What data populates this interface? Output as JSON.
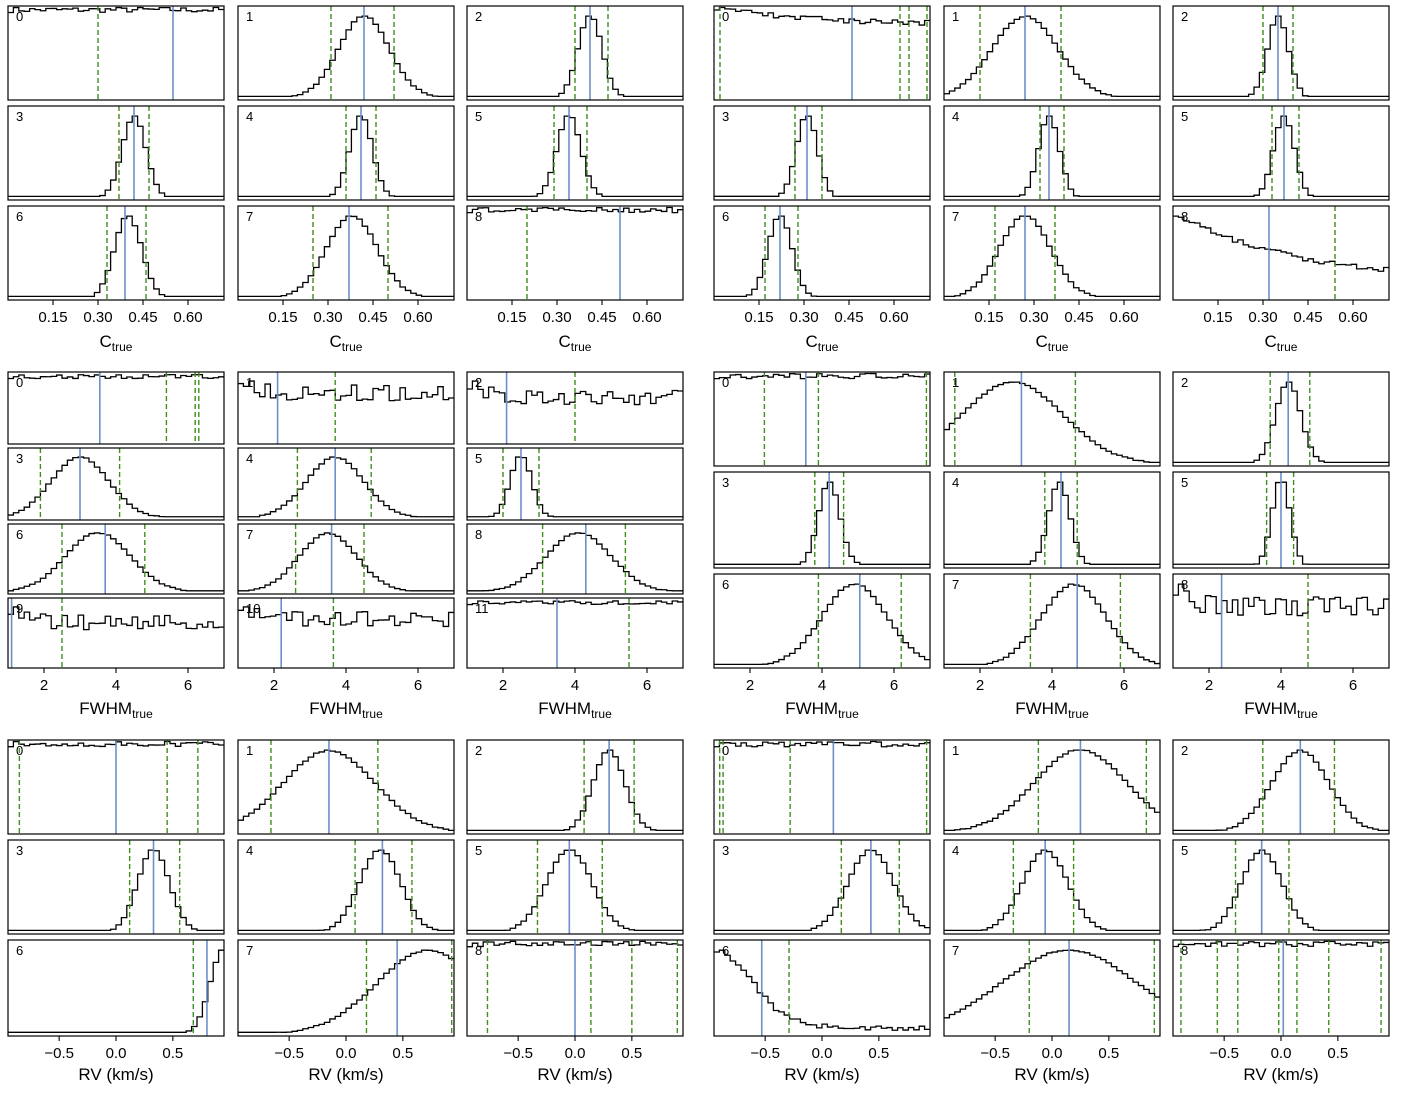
{
  "figure": {
    "colors": {
      "hist": "#000000",
      "median": "#6f8fca",
      "interval": "#3f8f1f"
    }
  },
  "chart_data": [
    {
      "type": "histogram-grid",
      "block": "C-left",
      "xlabel": "C",
      "xlabel_sub": "true",
      "xlim": [
        0.0,
        0.72
      ],
      "xticks": [
        0.15,
        0.3,
        0.45,
        0.6
      ],
      "xtick_labels": [
        "0.15",
        "0.30",
        "0.45",
        "0.60"
      ],
      "panels": [
        {
          "label": "0",
          "kind": "flat",
          "median": 0.55,
          "lines": [
            0.3
          ]
        },
        {
          "label": "1",
          "kind": "gauss",
          "center": 0.42,
          "width": 0.085,
          "median": 0.42,
          "lines": [
            0.31,
            0.52
          ]
        },
        {
          "label": "2",
          "kind": "gauss",
          "center": 0.41,
          "width": 0.04,
          "median": 0.41,
          "lines": [
            0.36,
            0.47
          ]
        },
        {
          "label": "3",
          "kind": "gauss",
          "center": 0.42,
          "width": 0.04,
          "median": 0.42,
          "lines": [
            0.37,
            0.47
          ]
        },
        {
          "label": "4",
          "kind": "gauss",
          "center": 0.41,
          "width": 0.038,
          "median": 0.41,
          "lines": [
            0.36,
            0.46
          ]
        },
        {
          "label": "5",
          "kind": "gauss",
          "center": 0.34,
          "width": 0.04,
          "median": 0.34,
          "lines": [
            0.29,
            0.4
          ]
        },
        {
          "label": "6",
          "kind": "gauss",
          "center": 0.4,
          "width": 0.045,
          "median": 0.39,
          "lines": [
            0.33,
            0.46
          ]
        },
        {
          "label": "7",
          "kind": "gauss",
          "center": 0.38,
          "width": 0.085,
          "median": 0.37,
          "lines": [
            0.25,
            0.5
          ]
        },
        {
          "label": "8",
          "kind": "flat",
          "median": 0.51,
          "lines": [
            0.2
          ]
        }
      ]
    },
    {
      "type": "histogram-grid",
      "block": "C-right",
      "xlabel": "C",
      "xlabel_sub": "true",
      "xlim": [
        0.0,
        0.72
      ],
      "xticks": [
        0.15,
        0.3,
        0.45,
        0.6
      ],
      "xtick_labels": [
        "0.15",
        "0.30",
        "0.45",
        "0.60"
      ],
      "panels": [
        {
          "label": "0",
          "kind": "decay-flat",
          "median": 0.46,
          "lines": [
            0.02,
            0.62,
            0.65,
            0.71
          ]
        },
        {
          "label": "1",
          "kind": "gauss",
          "center": 0.27,
          "width": 0.11,
          "median": 0.27,
          "lines": [
            0.12,
            0.39
          ]
        },
        {
          "label": "2",
          "kind": "gauss",
          "center": 0.35,
          "width": 0.035,
          "median": 0.35,
          "lines": [
            0.3,
            0.4
          ]
        },
        {
          "label": "3",
          "kind": "gauss",
          "center": 0.31,
          "width": 0.035,
          "median": 0.31,
          "lines": [
            0.27,
            0.36
          ]
        },
        {
          "label": "4",
          "kind": "gauss",
          "center": 0.35,
          "width": 0.035,
          "median": 0.35,
          "lines": [
            0.32,
            0.4
          ]
        },
        {
          "label": "5",
          "kind": "gauss",
          "center": 0.37,
          "width": 0.035,
          "median": 0.37,
          "lines": [
            0.33,
            0.42
          ]
        },
        {
          "label": "6",
          "kind": "gauss",
          "center": 0.22,
          "width": 0.04,
          "median": 0.22,
          "lines": [
            0.17,
            0.28
          ]
        },
        {
          "label": "7",
          "kind": "gauss",
          "center": 0.27,
          "width": 0.085,
          "median": 0.27,
          "lines": [
            0.17,
            0.37
          ]
        },
        {
          "label": "8",
          "kind": "decay",
          "median": 0.32,
          "lines": [
            0.54
          ]
        }
      ]
    },
    {
      "type": "histogram-grid",
      "block": "FWHM-left",
      "xlabel": "FWHM",
      "xlabel_sub": "true",
      "xlim": [
        1.0,
        7.0
      ],
      "xticks": [
        2,
        4,
        6
      ],
      "xtick_labels": [
        "2",
        "4",
        "6"
      ],
      "panels": [
        {
          "label": "0",
          "kind": "flat",
          "median": 3.55,
          "lines": [
            5.4,
            6.2,
            6.3
          ]
        },
        {
          "label": "1",
          "kind": "decay",
          "median": 2.1,
          "lines": [
            3.7
          ]
        },
        {
          "label": "2",
          "kind": "decay",
          "median": 2.1,
          "lines": [
            4.0
          ]
        },
        {
          "label": "3",
          "kind": "gauss",
          "center": 3.0,
          "width": 0.8,
          "median": 3.0,
          "lines": [
            1.9,
            4.1
          ]
        },
        {
          "label": "4",
          "kind": "gauss",
          "center": 3.7,
          "width": 0.8,
          "median": 3.7,
          "lines": [
            2.65,
            4.7
          ]
        },
        {
          "label": "5",
          "kind": "gauss",
          "center": 2.5,
          "width": 0.3,
          "median": 2.5,
          "lines": [
            2.0,
            3.0
          ]
        },
        {
          "label": "6",
          "kind": "gauss",
          "center": 3.5,
          "width": 0.9,
          "median": 3.7,
          "lines": [
            2.5,
            4.8
          ]
        },
        {
          "label": "7",
          "kind": "gauss",
          "center": 3.5,
          "width": 0.8,
          "median": 3.6,
          "lines": [
            2.6,
            4.5
          ]
        },
        {
          "label": "8",
          "kind": "gauss",
          "center": 4.1,
          "width": 0.9,
          "median": 4.3,
          "lines": [
            3.1,
            5.4
          ]
        },
        {
          "label": "9",
          "kind": "decay",
          "median": 1.1,
          "lines": [
            2.5
          ]
        },
        {
          "label": "10",
          "kind": "decay",
          "median": 2.2,
          "lines": [
            3.65
          ]
        },
        {
          "label": "11",
          "kind": "flat",
          "median": 3.5,
          "lines": [
            5.5
          ]
        }
      ]
    },
    {
      "type": "histogram-grid",
      "block": "FWHM-right",
      "xlabel": "FWHM",
      "xlabel_sub": "true",
      "xlim": [
        1.0,
        7.0
      ],
      "xticks": [
        2,
        4,
        6
      ],
      "xtick_labels": [
        "2",
        "4",
        "6"
      ],
      "panels": [
        {
          "label": "0",
          "kind": "flat",
          "median": 3.55,
          "lines": [
            2.4,
            3.9,
            6.9
          ]
        },
        {
          "label": "1",
          "kind": "broad",
          "center": 2.9,
          "width": 1.4,
          "median": 3.15,
          "lines": [
            1.3,
            4.65
          ]
        },
        {
          "label": "2",
          "kind": "gauss",
          "center": 4.2,
          "width": 0.35,
          "median": 4.2,
          "lines": [
            3.7,
            4.8
          ]
        },
        {
          "label": "3",
          "kind": "gauss",
          "center": 4.2,
          "width": 0.3,
          "median": 4.2,
          "lines": [
            3.8,
            4.6
          ]
        },
        {
          "label": "4",
          "kind": "gauss",
          "center": 4.2,
          "width": 0.3,
          "median": 4.25,
          "lines": [
            3.8,
            4.7
          ]
        },
        {
          "label": "5",
          "kind": "gauss",
          "center": 4.0,
          "width": 0.25,
          "median": 4.0,
          "lines": [
            3.6,
            4.35
          ]
        },
        {
          "label": "6",
          "kind": "gauss",
          "center": 4.9,
          "width": 0.9,
          "median": 5.05,
          "lines": [
            3.9,
            6.2
          ]
        },
        {
          "label": "7",
          "kind": "gauss",
          "center": 4.6,
          "width": 0.9,
          "median": 4.7,
          "lines": [
            3.4,
            5.9
          ]
        },
        {
          "label": "8",
          "kind": "decay",
          "median": 2.35,
          "lines": [
            4.75
          ]
        }
      ]
    },
    {
      "type": "histogram-grid",
      "block": "RV-left",
      "xlabel": "RV (km/s)",
      "xlabel_sub": "",
      "xlim": [
        -0.95,
        0.95
      ],
      "xticks": [
        -0.5,
        0.0,
        0.5
      ],
      "xtick_labels": [
        "−0.5",
        "0.0",
        "0.5"
      ],
      "panels": [
        {
          "label": "0",
          "kind": "flat",
          "median": 0.0,
          "lines": [
            -0.85,
            0.45,
            0.72
          ]
        },
        {
          "label": "1",
          "kind": "gauss",
          "center": -0.15,
          "width": 0.4,
          "median": -0.15,
          "lines": [
            -0.66,
            0.28
          ]
        },
        {
          "label": "2",
          "kind": "gauss",
          "center": 0.3,
          "width": 0.14,
          "median": 0.3,
          "lines": [
            0.08,
            0.52
          ]
        },
        {
          "label": "3",
          "kind": "gauss",
          "center": 0.33,
          "width": 0.14,
          "median": 0.33,
          "lines": [
            0.12,
            0.56
          ]
        },
        {
          "label": "4",
          "kind": "gauss",
          "center": 0.3,
          "width": 0.18,
          "median": 0.32,
          "lines": [
            0.08,
            0.58
          ]
        },
        {
          "label": "5",
          "kind": "gauss",
          "center": -0.05,
          "width": 0.2,
          "median": -0.05,
          "lines": [
            -0.33,
            0.24
          ]
        },
        {
          "label": "6",
          "kind": "rise",
          "center": 0.95,
          "width": 0.12,
          "median": 0.8,
          "lines": [
            0.68
          ]
        },
        {
          "label": "7",
          "kind": "gauss",
          "center": 0.72,
          "width": 0.45,
          "median": 0.45,
          "lines": [
            0.18,
            0.93
          ]
        },
        {
          "label": "8",
          "kind": "flat",
          "median": 0.0,
          "lines": [
            -0.77,
            0.14,
            0.5,
            0.9
          ]
        }
      ]
    },
    {
      "type": "histogram-grid",
      "block": "RV-right",
      "xlabel": "RV (km/s)",
      "xlabel_sub": "",
      "xlim": [
        -0.95,
        0.95
      ],
      "xticks": [
        -0.5,
        0.0,
        0.5
      ],
      "xtick_labels": [
        "−0.5",
        "0.0",
        "0.5"
      ],
      "panels": [
        {
          "label": "0",
          "kind": "flat",
          "median": 0.1,
          "lines": [
            -0.9,
            -0.87,
            -0.28,
            0.92
          ]
        },
        {
          "label": "1",
          "kind": "gauss",
          "center": 0.25,
          "width": 0.4,
          "median": 0.25,
          "lines": [
            -0.12,
            0.83
          ]
        },
        {
          "label": "2",
          "kind": "gauss",
          "center": 0.17,
          "width": 0.25,
          "median": 0.17,
          "lines": [
            -0.16,
            0.47
          ]
        },
        {
          "label": "3",
          "kind": "gauss",
          "center": 0.43,
          "width": 0.2,
          "median": 0.43,
          "lines": [
            0.17,
            0.68
          ]
        },
        {
          "label": "4",
          "kind": "gauss",
          "center": -0.06,
          "width": 0.2,
          "median": -0.06,
          "lines": [
            -0.34,
            0.19
          ]
        },
        {
          "label": "5",
          "kind": "gauss",
          "center": -0.17,
          "width": 0.18,
          "median": -0.17,
          "lines": [
            -0.4,
            0.07
          ]
        },
        {
          "label": "6",
          "kind": "falloff",
          "center": -0.6,
          "width": 0.45,
          "median": -0.53,
          "lines": [
            -0.29
          ]
        },
        {
          "label": "7",
          "kind": "gauss",
          "center": 0.15,
          "width": 0.6,
          "median": 0.15,
          "lines": [
            -0.2,
            0.9
          ]
        },
        {
          "label": "8",
          "kind": "flat",
          "median": 0.02,
          "lines": [
            -0.88,
            -0.56,
            -0.38,
            -0.02,
            0.14,
            0.42,
            0.88
          ]
        }
      ]
    }
  ]
}
